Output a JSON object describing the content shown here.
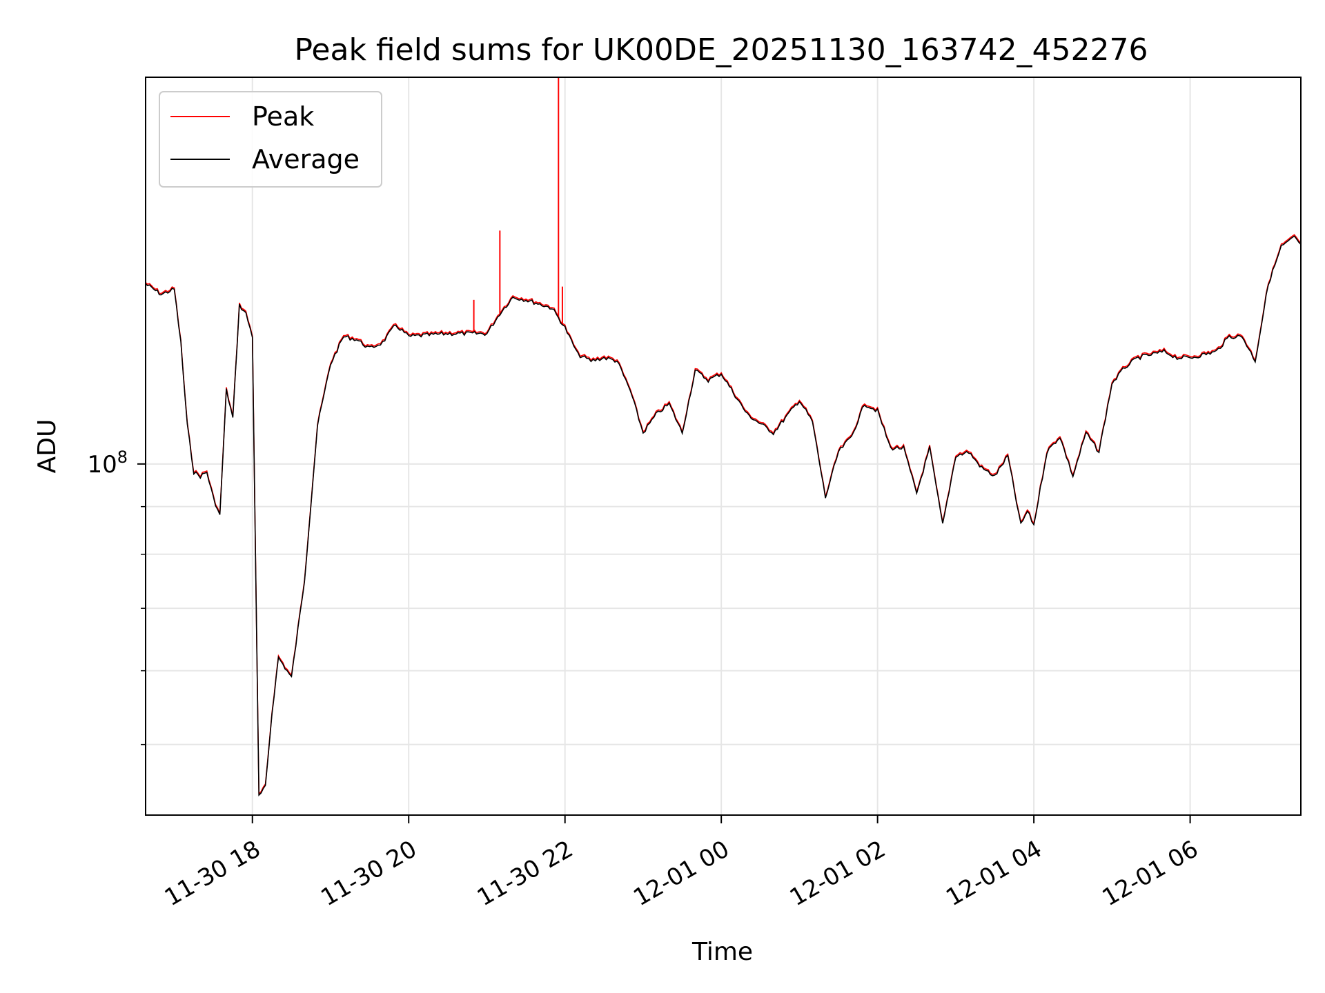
{
  "chart_data": {
    "type": "line",
    "title": "Peak field sums for UK00DE_20251130_163742_452276",
    "xlabel": "Time",
    "ylabel": "ADU",
    "yscale": "log",
    "grid": true,
    "legend_position": "top-left",
    "x_range": [
      "2025-11-30 16:38",
      "2025-12-01 07:25"
    ],
    "y_range": [
      42000000,
      260000000
    ],
    "x_ticks": [
      {
        "t": "2025-11-30 18:00",
        "label": "11-30 18"
      },
      {
        "t": "2025-11-30 20:00",
        "label": "11-30 20"
      },
      {
        "t": "2025-11-30 22:00",
        "label": "11-30 22"
      },
      {
        "t": "2025-12-01 00:00",
        "label": "12-01 00"
      },
      {
        "t": "2025-12-01 02:00",
        "label": "12-01 02"
      },
      {
        "t": "2025-12-01 04:00",
        "label": "12-01 04"
      },
      {
        "t": "2025-12-01 06:00",
        "label": "12-01 06"
      }
    ],
    "y_ticks_major": [
      {
        "value": 100000000,
        "base": "10",
        "exp": "8"
      }
    ],
    "y_ticks_minor": [
      50000000,
      60000000,
      70000000,
      80000000,
      90000000
    ],
    "series": [
      {
        "name": "Peak",
        "color": "#ff0000",
        "spikes": [
          {
            "x": "2025-11-30 21:10",
            "y": 178000000
          },
          {
            "x": "2025-11-30 21:55",
            "y": 265000000
          },
          {
            "x": "2025-11-30 21:58",
            "y": 155000000
          },
          {
            "x": "2025-11-30 20:50",
            "y": 150000000
          }
        ]
      },
      {
        "name": "Average",
        "color": "#000000",
        "x": [
          "2025-11-30 16:38",
          "2025-11-30 16:50",
          "2025-11-30 17:00",
          "2025-11-30 17:05",
          "2025-11-30 17:10",
          "2025-11-30 17:15",
          "2025-11-30 17:20",
          "2025-11-30 17:25",
          "2025-11-30 17:30",
          "2025-11-30 17:35",
          "2025-11-30 17:40",
          "2025-11-30 17:45",
          "2025-11-30 17:50",
          "2025-11-30 17:55",
          "2025-11-30 18:00",
          "2025-11-30 18:05",
          "2025-11-30 18:10",
          "2025-11-30 18:15",
          "2025-11-30 18:20",
          "2025-11-30 18:30",
          "2025-11-30 18:40",
          "2025-11-30 18:50",
          "2025-11-30 19:00",
          "2025-11-30 19:10",
          "2025-11-30 19:20",
          "2025-11-30 19:30",
          "2025-11-30 19:40",
          "2025-11-30 19:50",
          "2025-11-30 20:00",
          "2025-11-30 20:30",
          "2025-11-30 21:00",
          "2025-11-30 21:10",
          "2025-11-30 21:20",
          "2025-11-30 21:30",
          "2025-11-30 21:50",
          "2025-11-30 22:00",
          "2025-11-30 22:10",
          "2025-11-30 22:20",
          "2025-11-30 22:30",
          "2025-11-30 22:40",
          "2025-11-30 22:50",
          "2025-11-30 23:00",
          "2025-11-30 23:10",
          "2025-11-30 23:20",
          "2025-11-30 23:30",
          "2025-11-30 23:40",
          "2025-11-30 23:50",
          "2025-12-01 00:00",
          "2025-12-01 00:20",
          "2025-12-01 00:40",
          "2025-12-01 01:00",
          "2025-12-01 01:10",
          "2025-12-01 01:20",
          "2025-12-01 01:30",
          "2025-12-01 01:40",
          "2025-12-01 01:50",
          "2025-12-01 02:00",
          "2025-12-01 02:10",
          "2025-12-01 02:20",
          "2025-12-01 02:30",
          "2025-12-01 02:40",
          "2025-12-01 02:50",
          "2025-12-01 03:00",
          "2025-12-01 03:10",
          "2025-12-01 03:20",
          "2025-12-01 03:30",
          "2025-12-01 03:40",
          "2025-12-01 03:50",
          "2025-12-01 03:55",
          "2025-12-01 04:00",
          "2025-12-01 04:10",
          "2025-12-01 04:20",
          "2025-12-01 04:30",
          "2025-12-01 04:40",
          "2025-12-01 04:50",
          "2025-12-01 05:00",
          "2025-12-01 05:10",
          "2025-12-01 05:20",
          "2025-12-01 05:30",
          "2025-12-01 05:40",
          "2025-12-01 05:50",
          "2025-12-01 06:00",
          "2025-12-01 06:20",
          "2025-12-01 06:30",
          "2025-12-01 06:40",
          "2025-12-01 06:50",
          "2025-12-01 07:00",
          "2025-12-01 07:10",
          "2025-12-01 07:20",
          "2025-12-01 07:25"
        ],
        "y": [
          156000000,
          152000000,
          154000000,
          135000000,
          110000000,
          98000000,
          97000000,
          98000000,
          92000000,
          88000000,
          120000000,
          112000000,
          148000000,
          145000000,
          137000000,
          44000000,
          45000000,
          54000000,
          62000000,
          59000000,
          75000000,
          110000000,
          128000000,
          137000000,
          136000000,
          133000000,
          135000000,
          141000000,
          137000000,
          138000000,
          138000000,
          145000000,
          151000000,
          150000000,
          147000000,
          140000000,
          131000000,
          129000000,
          130000000,
          129000000,
          120000000,
          108000000,
          113000000,
          116000000,
          108000000,
          126000000,
          123000000,
          125000000,
          113000000,
          108000000,
          117000000,
          111000000,
          92000000,
          103000000,
          107000000,
          116000000,
          114000000,
          104000000,
          104000000,
          93000000,
          104000000,
          86000000,
          102000000,
          103000000,
          99000000,
          97000000,
          102000000,
          86000000,
          89000000,
          86000000,
          103000000,
          107000000,
          97000000,
          108000000,
          103000000,
          122000000,
          127000000,
          130000000,
          131000000,
          132000000,
          130000000,
          130000000,
          132000000,
          137000000,
          137000000,
          129000000,
          156000000,
          171000000,
          175000000,
          172000000
        ]
      }
    ]
  }
}
